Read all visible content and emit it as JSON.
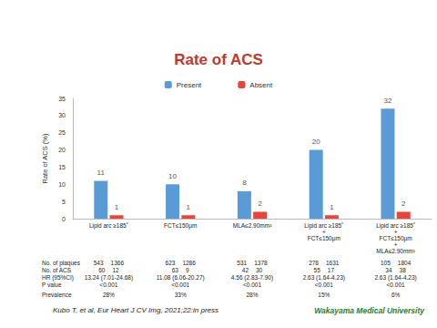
{
  "chart_data": {
    "type": "bar",
    "title": "Rate of ACS",
    "y_label": "Rate of ACS (%)",
    "categories": [
      "Lipid arc ≥185˚",
      "FCT≤150μm",
      "MLA≤2.90mm²",
      "Lipid arc ≥185˚\n+\nFCT≤150μm",
      "Lipid arc ≥185˚\n+\nFCT≤150μm\n+\nMLA≤2.90mm²"
    ],
    "series": [
      {
        "name": "Present",
        "color": "#5b9bd5",
        "values": [
          11,
          10,
          8,
          20,
          32
        ]
      },
      {
        "name": "Absent",
        "color": "#e8453c",
        "values": [
          1,
          1,
          2,
          1,
          2
        ]
      }
    ],
    "ylim": [
      0,
      35
    ],
    "yticks": [
      0,
      5,
      10,
      15,
      20,
      25,
      30,
      35
    ],
    "grid": false,
    "legend": "top",
    "data_labels": true
  },
  "table": {
    "rows": [
      {
        "label": "No. of plaques",
        "cells": [
          [
            543,
            1366
          ],
          [
            623,
            1286
          ],
          [
            531,
            1378
          ],
          [
            278,
            1631
          ],
          [
            105,
            1804
          ]
        ]
      },
      {
        "label": "No. of ACS",
        "cells": [
          [
            60,
            12
          ],
          [
            63,
            9
          ],
          [
            42,
            30
          ],
          [
            55,
            17
          ],
          [
            34,
            38
          ]
        ]
      },
      {
        "label": "HR (95%CI)",
        "cells": [
          "13.24 (7.01-24.68)",
          "11.08 (6.06-20.27)",
          "4.56 (2.83-7.90)",
          "2.63 (1.64-4.23)",
          "2.63 (1.64-4.23)"
        ]
      },
      {
        "label": "P value",
        "cells": [
          "<0.001",
          "<0.001",
          "<0.001",
          "<0.001",
          "<0.001"
        ]
      },
      {
        "label": "Prevalence",
        "cells": [
          "28%",
          "33%",
          "28%",
          "15%",
          "6%"
        ]
      }
    ]
  },
  "citation": "Kubo T, et al, Eur Heart J CV Img, 2021;22:in press",
  "institution": "Wakayama Medical University"
}
